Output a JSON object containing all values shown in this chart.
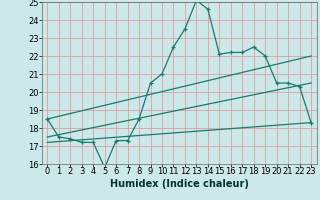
{
  "xlabel": "Humidex (Indice chaleur)",
  "xlim": [
    -0.5,
    23.5
  ],
  "ylim": [
    16,
    25
  ],
  "xticks": [
    0,
    1,
    2,
    3,
    4,
    5,
    6,
    7,
    8,
    9,
    10,
    11,
    12,
    13,
    14,
    15,
    16,
    17,
    18,
    19,
    20,
    21,
    22,
    23
  ],
  "yticks": [
    16,
    17,
    18,
    19,
    20,
    21,
    22,
    23,
    24,
    25
  ],
  "bg_color": "#cce8e8",
  "line_color": "#1a7a6e",
  "grid_color": "#dda0a0",
  "zigzag_x": [
    0,
    1,
    2,
    3,
    4,
    5,
    6,
    7,
    8,
    9,
    10,
    11,
    12,
    13,
    14,
    15,
    16,
    17,
    18,
    19,
    20,
    21,
    22,
    23
  ],
  "zigzag_y": [
    18.5,
    17.5,
    17.4,
    17.2,
    17.2,
    15.8,
    17.3,
    17.3,
    18.5,
    20.5,
    21.0,
    22.5,
    23.5,
    25.1,
    24.6,
    22.1,
    22.2,
    22.2,
    22.5,
    22.0,
    20.5,
    20.5,
    20.3,
    18.3
  ],
  "line1_x": [
    0,
    23
  ],
  "line1_y": [
    18.5,
    22.0
  ],
  "line2_x": [
    0,
    23
  ],
  "line2_y": [
    17.5,
    20.5
  ],
  "line3_x": [
    0,
    23
  ],
  "line3_y": [
    17.2,
    18.3
  ],
  "xlabel_fontsize": 7,
  "tick_fontsize": 6
}
